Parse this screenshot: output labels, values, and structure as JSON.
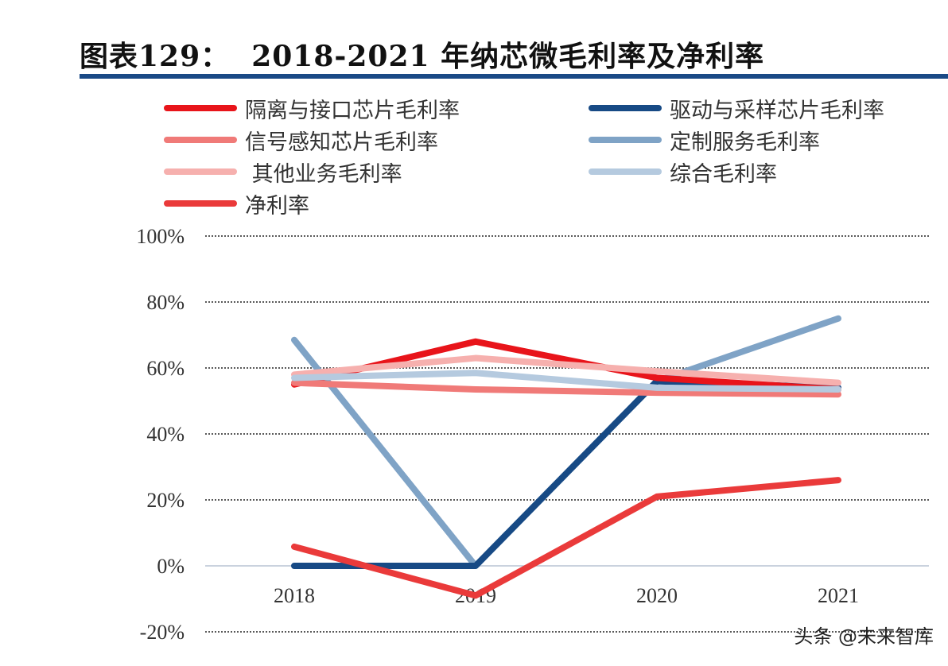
{
  "chart_data": {
    "type": "line",
    "title": "图表129：  2018-2021 年纳芯微毛利率及净利率",
    "categories": [
      "2018",
      "2019",
      "2020",
      "2021"
    ],
    "ylim": [
      -20,
      100
    ],
    "yticks": [
      "-20%",
      "0%",
      "20%",
      "40%",
      "60%",
      "80%",
      "100%"
    ],
    "ytick_values": [
      -20,
      0,
      20,
      40,
      60,
      80,
      100
    ],
    "grid": true,
    "legend_position": "top",
    "series": [
      {
        "name": "隔离与接口芯片毛利率",
        "color": "#e8141a",
        "values": [
          55,
          68,
          57,
          53.5
        ]
      },
      {
        "name": "驱动与采样芯片毛利率",
        "color": "#174a85",
        "values": [
          0,
          0,
          56,
          54
        ]
      },
      {
        "name": "信号感知芯片毛利率",
        "color": "#f07a78",
        "values": [
          55.5,
          53.5,
          52.5,
          52
        ]
      },
      {
        "name": "定制服务毛利率",
        "color": "#7fa3c6",
        "values": [
          68.5,
          0,
          56,
          75
        ]
      },
      {
        "name": " 其他业务毛利率",
        "color": "#f6b0ae",
        "values": [
          58,
          63,
          59,
          55.5
        ]
      },
      {
        "name": "综合毛利率",
        "color": "#b5cadf",
        "values": [
          57,
          58.5,
          54,
          53.5
        ]
      },
      {
        "name": "净利率",
        "color": "#ea3a3a",
        "values": [
          5.8,
          -9,
          21,
          26
        ]
      }
    ]
  },
  "watermark": "头条 @未来智库"
}
